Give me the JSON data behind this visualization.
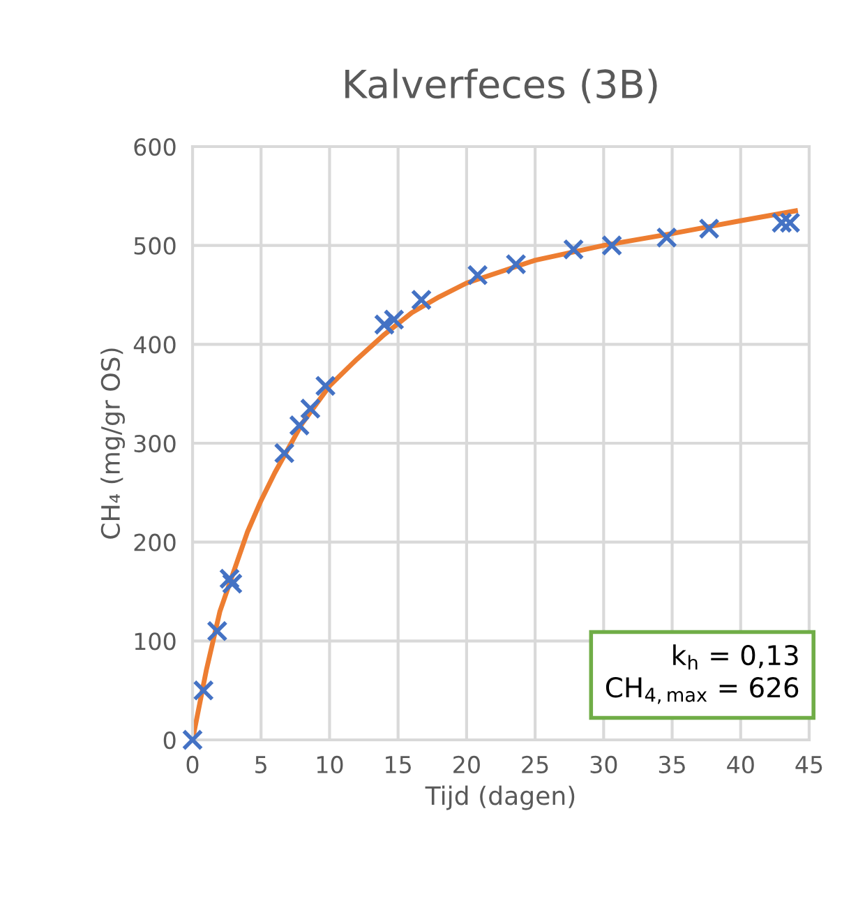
{
  "chart_data": {
    "type": "scatter",
    "title": "Kalverfeces (3B)",
    "xlabel": "Tijd (dagen)",
    "ylabel": "CH₄ (mg/gr OS)",
    "xlim": [
      0,
      45
    ],
    "xticks": [
      0,
      5,
      10,
      15,
      20,
      25,
      30,
      35,
      40,
      45
    ],
    "ylim": [
      0,
      600
    ],
    "yticks": [
      0,
      100,
      200,
      300,
      400,
      500,
      600
    ],
    "grid": true,
    "annotations": [
      "k$_{h}$ = 0,13\nCH$_{4,max}$ = 626"
    ],
    "series": [
      {
        "type": "line",
        "color": "#ed7d31",
        "x": [
          0,
          1,
          2,
          3,
          4,
          5,
          6,
          7,
          8,
          10,
          12,
          14,
          16,
          18,
          20,
          25,
          30,
          35,
          40,
          44
        ],
        "values": [
          0,
          70,
          130,
          170,
          210,
          242,
          270,
          295,
          320,
          358,
          385,
          410,
          432,
          448,
          462,
          485,
          500,
          512,
          525,
          535
        ]
      },
      {
        "marker": "cross",
        "color": "#4472c4",
        "x": [
          0,
          0.8,
          1.8,
          2.7,
          2.9,
          6.7,
          7.8,
          8.6,
          9.7,
          14,
          14.7,
          16.7,
          20.8,
          23.6,
          27.8,
          30.6,
          34.6,
          37.7,
          43,
          43.6
        ],
        "values": [
          0,
          50,
          110,
          163,
          158,
          290,
          318,
          335,
          358,
          420,
          425,
          445,
          470,
          481,
          496,
          500,
          508,
          517,
          523,
          523
        ]
      }
    ]
  }
}
